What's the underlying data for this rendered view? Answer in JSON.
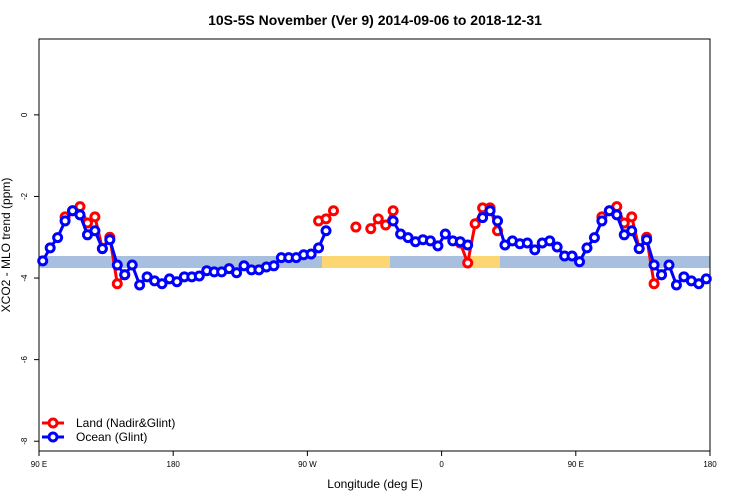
{
  "chart_data": {
    "type": "line",
    "title": "10S-5S November (Ver 9)   2014-09-06 to 2018-12-31",
    "x_label": "Longitude (deg E)",
    "y_label": "XCO2 - MLO trend (ppm)",
    "xlim": [
      90,
      540
    ],
    "ylim": [
      -8.24,
      1.86
    ],
    "xticks": [
      {
        "value": 90,
        "label": "90 E"
      },
      180,
      {
        "value": 270,
        "label": "90 W"
      },
      {
        "value": 360,
        "label": "0"
      },
      {
        "value": 450,
        "label": "90 E"
      },
      {
        "value": 540,
        "label": "180"
      }
    ],
    "yticks": [
      0,
      -2,
      -4,
      -6,
      -8
    ],
    "legend": "bottom-left",
    "x": [
      92.5,
      97.5,
      102.5,
      107.5,
      112.5,
      117.5,
      122.5,
      127.5,
      132.5,
      137.5,
      142.5,
      147.5,
      152.5,
      157.5,
      162.5,
      167.5,
      172.5,
      177.5,
      182.5,
      187.5,
      192.5,
      197.5,
      202.5,
      207.5,
      212.5,
      217.5,
      222.5,
      227.5,
      232.5,
      237.5,
      242.5,
      247.5,
      252.5,
      257.5,
      262.5,
      267.5,
      272.5,
      277.5,
      282.5,
      287.5,
      292.5,
      297.5,
      302.5,
      307.5,
      312.5,
      317.5,
      322.5,
      327.5,
      332.5,
      337.5,
      342.5,
      347.5,
      352.5,
      357.5,
      362.5,
      367.5,
      372.5,
      377.5,
      382.5,
      387.5,
      392.5,
      397.5,
      402.5,
      407.5,
      412.5,
      417.5,
      422.5,
      427.5,
      432.5,
      437.5,
      442.5,
      447.5,
      452.5,
      457.5,
      462.5,
      467.5,
      472.5,
      477.5,
      482.5,
      487.5,
      492.5,
      497.5,
      502.5,
      507.5,
      512.5,
      517.5,
      522.5,
      527.5,
      532.5,
      537.5
    ],
    "series": [
      {
        "name": "Land (Nadir&Glint)",
        "color": "#ff0000",
        "values": [
          null,
          null,
          null,
          -2.5,
          -2.35,
          -2.25,
          -2.65,
          -2.5,
          -3.28,
          -3.0,
          -4.14,
          -3.92,
          null,
          null,
          null,
          null,
          null,
          null,
          null,
          null,
          null,
          null,
          null,
          null,
          null,
          null,
          null,
          null,
          null,
          null,
          null,
          null,
          null,
          null,
          null,
          null,
          null,
          -2.6,
          -2.55,
          -2.35,
          null,
          null,
          -2.75,
          null,
          -2.79,
          -2.55,
          -2.7,
          -2.35,
          null,
          null,
          null,
          null,
          null,
          null,
          null,
          null,
          -3.14,
          -3.63,
          -2.67,
          -2.28,
          -2.28,
          -2.84,
          null,
          null,
          null,
          null,
          null,
          null,
          null,
          null,
          null,
          null,
          null,
          null,
          null,
          -2.5,
          -2.35,
          -2.25,
          -2.65,
          -2.5,
          -3.28,
          -3.0,
          -4.14,
          -3.92,
          null,
          null,
          null,
          null,
          null,
          null
        ]
      },
      {
        "name": "Ocean (Glint)",
        "color": "#0000ff",
        "values": [
          -3.58,
          -3.26,
          -3.01,
          -2.6,
          -2.35,
          -2.45,
          -2.94,
          -2.84,
          -3.28,
          -3.06,
          -3.68,
          -3.92,
          -3.68,
          -4.17,
          -3.97,
          -4.07,
          -4.14,
          -4.02,
          -4.09,
          -3.97,
          -3.97,
          -3.95,
          -3.82,
          -3.85,
          -3.85,
          -3.77,
          -3.87,
          -3.7,
          -3.8,
          -3.8,
          -3.73,
          -3.7,
          -3.5,
          -3.5,
          -3.5,
          -3.43,
          -3.41,
          -3.26,
          -2.84,
          null,
          null,
          null,
          null,
          null,
          null,
          null,
          null,
          -2.6,
          -2.92,
          -3.01,
          -3.11,
          -3.06,
          -3.09,
          -3.21,
          -2.92,
          -3.09,
          -3.11,
          -3.19,
          null,
          -2.52,
          -2.35,
          -2.6,
          -3.19,
          -3.09,
          -3.16,
          -3.14,
          -3.31,
          -3.14,
          -3.09,
          -3.24,
          -3.46,
          -3.46,
          -3.6,
          -3.26,
          -3.01,
          -2.6,
          -2.35,
          -2.45,
          -2.94,
          -2.84,
          -3.28,
          -3.06,
          -3.68,
          -3.92,
          -3.68,
          -4.17,
          -3.97,
          -4.07,
          -4.14,
          -4.02
        ]
      }
    ]
  }
}
